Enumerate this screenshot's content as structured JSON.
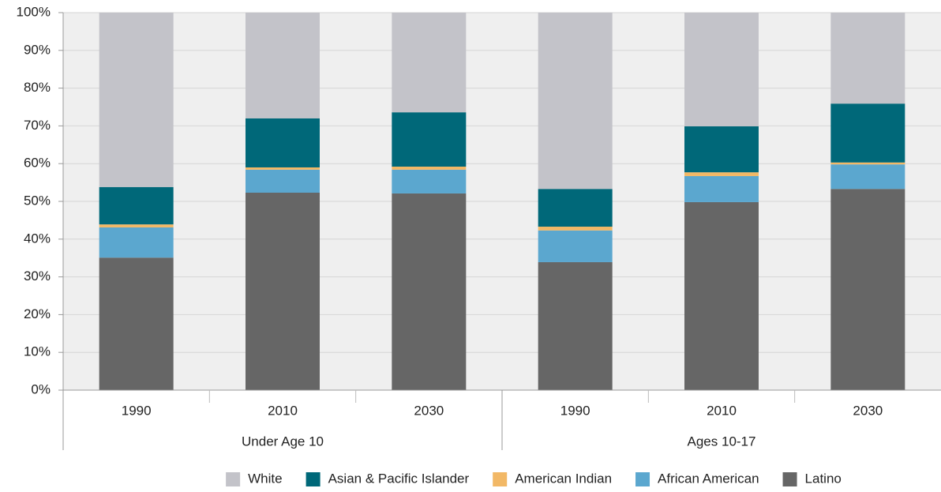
{
  "chart_data": {
    "type": "stacked_bar",
    "categories": [
      "1990",
      "2010",
      "2030",
      "1990",
      "2010",
      "2030"
    ],
    "group_labels": [
      "Under Age 10",
      "Ages 10-17"
    ],
    "series": [
      {
        "name": "White",
        "color": "#c3c3c9",
        "values": [
          46.2,
          28.0,
          26.4,
          46.7,
          30.1,
          24.1
        ]
      },
      {
        "name": "Asian & Pacific Islander",
        "color": "#006879",
        "values": [
          9.9,
          13.0,
          14.4,
          10.0,
          12.2,
          15.6
        ]
      },
      {
        "name": "American Indian",
        "color": "#f2b866",
        "values": [
          0.8,
          0.6,
          0.8,
          1.0,
          1.0,
          0.5
        ]
      },
      {
        "name": "African American",
        "color": "#5ba7cf",
        "values": [
          8.0,
          6.1,
          6.3,
          8.4,
          6.9,
          6.5
        ]
      },
      {
        "name": "Latino",
        "color": "#666666",
        "values": [
          35.1,
          52.3,
          52.1,
          33.9,
          49.8,
          53.3
        ]
      }
    ],
    "ylim": [
      0,
      100
    ],
    "yticks": [
      {
        "value": 0,
        "label": "0%"
      },
      {
        "value": 10,
        "label": "10%"
      },
      {
        "value": 20,
        "label": "20%"
      },
      {
        "value": 30,
        "label": "30%"
      },
      {
        "value": 40,
        "label": "40%"
      },
      {
        "value": 50,
        "label": "50%"
      },
      {
        "value": 60,
        "label": "60%"
      },
      {
        "value": 70,
        "label": "70%"
      },
      {
        "value": 80,
        "label": "80%"
      },
      {
        "value": 90,
        "label": "90%"
      },
      {
        "value": 100,
        "label": "100%"
      }
    ],
    "grid": true
  }
}
